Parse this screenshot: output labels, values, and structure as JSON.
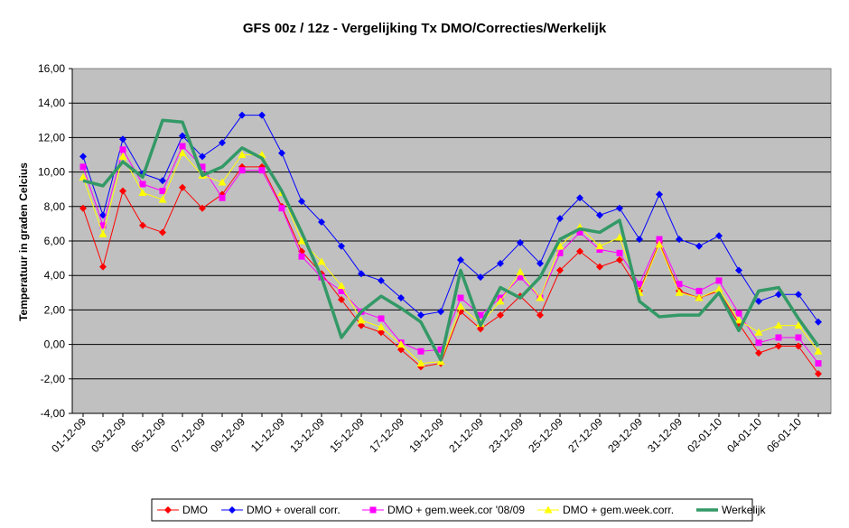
{
  "chart_data": {
    "type": "line",
    "title": "GFS 00z / 12z - Vergelijking Tx DMO/Correcties/Werkelijk",
    "xlabel": "",
    "ylabel": "Temperatuur in graden Celcius",
    "ylim": [
      -4,
      16
    ],
    "yticks": [
      "-4,00",
      "-2,00",
      "0,00",
      "2,00",
      "4,00",
      "6,00",
      "8,00",
      "10,00",
      "12,00",
      "14,00",
      "16,00"
    ],
    "plot_background": "#c0c0c0",
    "grid": true,
    "legend_position": "bottom",
    "x": [
      "01-12-09",
      "02-12-09",
      "03-12-09",
      "04-12-09",
      "05-12-09",
      "06-12-09",
      "07-12-09",
      "08-12-09",
      "09-12-09",
      "10-12-09",
      "11-12-09",
      "12-12-09",
      "13-12-09",
      "14-12-09",
      "15-12-09",
      "16-12-09",
      "17-12-09",
      "18-12-09",
      "19-12-09",
      "20-12-09",
      "21-12-09",
      "22-12-09",
      "23-12-09",
      "24-12-09",
      "25-12-09",
      "26-12-09",
      "27-12-09",
      "28-12-09",
      "29-12-09",
      "30-12-09",
      "31-12-09",
      "01-01-10",
      "02-01-10",
      "03-01-10",
      "04-01-10",
      "05-01-10",
      "06-01-10",
      "07-01-10"
    ],
    "x_tick_labels": [
      "01-12-09",
      "03-12-09",
      "05-12-09",
      "07-12-09",
      "09-12-09",
      "11-12-09",
      "13-12-09",
      "15-12-09",
      "17-12-09",
      "19-12-09",
      "21-12-09",
      "23-12-09",
      "25-12-09",
      "27-12-09",
      "29-12-09",
      "31-12-09",
      "02-01-10",
      "04-01-10",
      "06-01-10"
    ],
    "series": [
      {
        "name": "DMO",
        "color": "#ff0000",
        "marker": "diamond",
        "values": [
          7.9,
          4.5,
          8.9,
          6.9,
          6.5,
          9.1,
          7.9,
          8.7,
          10.3,
          10.3,
          8.0,
          5.4,
          4.1,
          2.6,
          1.1,
          0.7,
          -0.3,
          -1.3,
          -1.1,
          1.9,
          0.9,
          1.7,
          2.8,
          1.7,
          4.3,
          5.4,
          4.5,
          4.9,
          3.1,
          5.9,
          3.1,
          2.7,
          3.1,
          1.2,
          -0.5,
          -0.1,
          -0.1,
          -1.7
        ]
      },
      {
        "name": "DMO + overall corr.",
        "color": "#0000ff",
        "marker": "diamond",
        "values": [
          10.9,
          7.5,
          11.9,
          9.9,
          9.5,
          12.1,
          10.9,
          11.7,
          13.3,
          13.3,
          11.1,
          8.3,
          7.1,
          5.7,
          4.1,
          3.7,
          2.7,
          1.7,
          1.9,
          4.9,
          3.9,
          4.7,
          5.9,
          4.7,
          7.3,
          8.5,
          7.5,
          7.9,
          6.1,
          8.7,
          6.1,
          5.7,
          6.3,
          4.3,
          2.5,
          2.9,
          2.9,
          1.3
        ]
      },
      {
        "name": "DMO + gem.week.cor '08/09",
        "color": "#ff00ff",
        "marker": "square",
        "values": [
          10.3,
          6.9,
          11.3,
          9.3,
          8.9,
          11.5,
          10.3,
          8.5,
          10.1,
          10.1,
          7.9,
          5.1,
          3.9,
          3.1,
          1.9,
          1.5,
          0.1,
          -0.4,
          -0.3,
          2.7,
          1.7,
          2.7,
          3.9,
          2.7,
          5.3,
          6.5,
          5.5,
          5.3,
          3.5,
          6.1,
          3.5,
          3.1,
          3.7,
          1.8,
          0.1,
          0.4,
          0.4,
          -1.1
        ]
      },
      {
        "name": "DMO + gem.week.corr.",
        "color": "#ffff00",
        "marker": "triangle",
        "values": [
          9.7,
          6.4,
          10.9,
          8.8,
          8.4,
          11.1,
          9.8,
          9.4,
          11.0,
          11.0,
          8.8,
          6.0,
          4.8,
          3.4,
          1.4,
          1.0,
          0.0,
          -1.1,
          -1.0,
          2.2,
          1.2,
          2.5,
          4.2,
          2.7,
          5.7,
          6.8,
          5.7,
          6.2,
          3.0,
          5.8,
          3.0,
          2.7,
          3.2,
          1.4,
          0.7,
          1.1,
          1.1,
          -0.4
        ]
      },
      {
        "name": "Werkelijk",
        "color": "#339966",
        "marker": "none",
        "values": [
          9.5,
          9.2,
          10.6,
          9.7,
          13.0,
          12.9,
          9.8,
          10.3,
          11.4,
          10.8,
          8.9,
          6.5,
          3.9,
          0.4,
          1.9,
          2.8,
          2.1,
          1.3,
          -0.9,
          4.3,
          1.1,
          3.3,
          2.7,
          3.9,
          6.1,
          6.7,
          6.5,
          7.2,
          2.5,
          1.6,
          1.7,
          1.7,
          3.0,
          0.8,
          3.1,
          3.3,
          1.5,
          -0.1
        ]
      }
    ]
  }
}
